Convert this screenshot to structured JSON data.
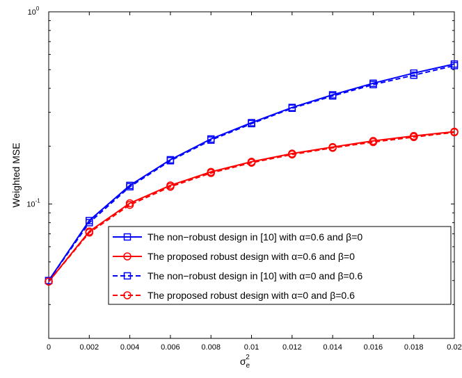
{
  "chart_data": {
    "type": "line",
    "xlabel": "σ",
    "xlabel_sub": "e",
    "xlabel_sup": "2",
    "ylabel": "Weighted MSE",
    "xlim": [
      0,
      0.02
    ],
    "ylim": [
      0.02,
      1
    ],
    "yscale": "log",
    "x_ticks": [
      "0",
      "0.002",
      "0.004",
      "0.006",
      "0.008",
      "0.01",
      "0.012",
      "0.014",
      "0.016",
      "0.018",
      "0.02"
    ],
    "y_ticks": [
      {
        "base": "10",
        "exp": "0",
        "value": 1
      },
      {
        "base": "10",
        "exp": "-1",
        "value": 0.1
      }
    ],
    "legend_position": "bottom-right",
    "x": [
      0,
      0.002,
      0.004,
      0.006,
      0.008,
      0.01,
      0.012,
      0.014,
      0.016,
      0.018,
      0.02
    ],
    "series": [
      {
        "name": "The non−robust design in [10] with α=0.6 and β=0",
        "color": "#0000ff",
        "line": "solid",
        "marker": "square",
        "values": [
          0.04,
          0.082,
          0.125,
          0.17,
          0.218,
          0.265,
          0.318,
          0.37,
          0.425,
          0.48,
          0.535
        ]
      },
      {
        "name": "The proposed robust design  with α=0.6 and β=0",
        "color": "#ff0000",
        "line": "solid",
        "marker": "circle",
        "values": [
          0.0395,
          0.072,
          0.101,
          0.125,
          0.147,
          0.166,
          0.183,
          0.198,
          0.213,
          0.226,
          0.238
        ]
      },
      {
        "name": "The non−robust design in [10]  with α=0 and β=0.6",
        "color": "#0000ff",
        "line": "dashed",
        "marker": "square",
        "values": [
          0.04,
          0.08,
          0.123,
          0.168,
          0.215,
          0.262,
          0.315,
          0.365,
          0.418,
          0.468,
          0.525
        ]
      },
      {
        "name": "The proposed robust design  with α=0 and β=0.6",
        "color": "#ff0000",
        "line": "dashed",
        "marker": "circle",
        "values": [
          0.0395,
          0.071,
          0.099,
          0.123,
          0.145,
          0.164,
          0.181,
          0.196,
          0.21,
          0.223,
          0.236
        ]
      }
    ]
  }
}
